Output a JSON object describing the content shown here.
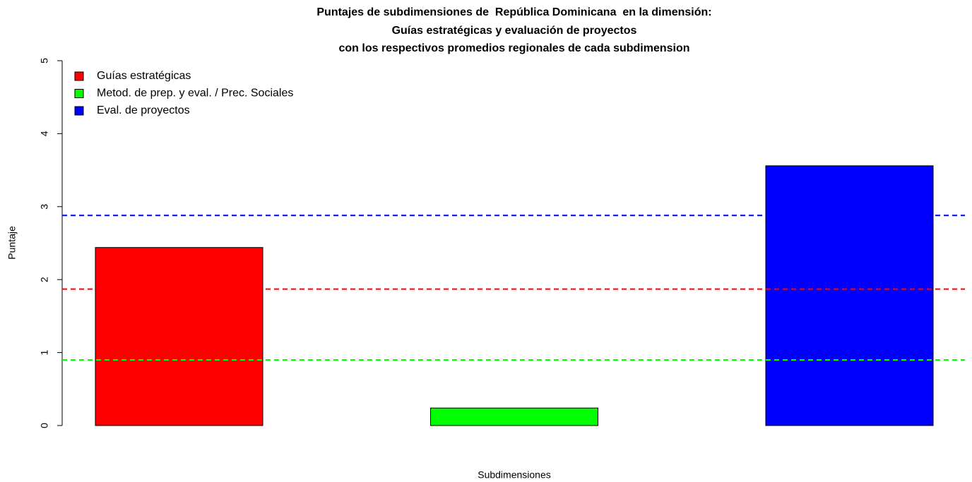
{
  "chart_data": {
    "type": "bar",
    "title": [
      "Puntajes de subdimensiones de  República Dominicana  en la dimensión:",
      "Guías estratégicas y evaluación de proyectos",
      "con los respectivos promedios regionales de cada subdimension"
    ],
    "xlabel": "Subdimensiones",
    "ylabel": "Puntaje",
    "categories": [
      null,
      null,
      null
    ],
    "values": [
      2.44,
      0.24,
      3.56
    ],
    "colors": [
      "#ff0000",
      "#00ff00",
      "#0000ff"
    ],
    "legend": [
      "Guías estratégicas",
      "Metod. de prep. y eval. / Prec. Sociales",
      "Eval. de proyectos"
    ],
    "reference_lines": [
      {
        "value": 1.87,
        "color": "#ff0000"
      },
      {
        "value": 0.9,
        "color": "#00ff00"
      },
      {
        "value": 2.88,
        "color": "#0000ff"
      }
    ],
    "ylim": [
      0,
      5
    ],
    "yticks": [
      0,
      1,
      2,
      3,
      4,
      5
    ],
    "legend_position": "top-left"
  }
}
